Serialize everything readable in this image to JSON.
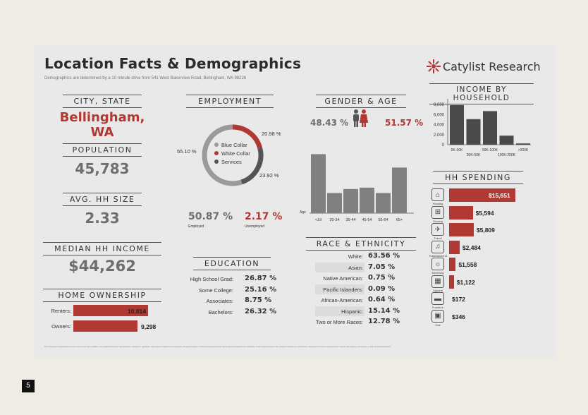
{
  "header": {
    "title": "Location Facts & Demographics",
    "subtitle": "Demographics are determined by a 10 minute drive from 541 West Bakerview Road, Bellingham, WA 98226",
    "brand": "Catylist Research",
    "brand_color": "#b03a33"
  },
  "city": {
    "heading": "CITY, STATE",
    "value": "Bellingham, WA"
  },
  "population": {
    "heading": "POPULATION",
    "value": "45,783"
  },
  "hh_size": {
    "heading": "AVG. HH SIZE",
    "value": "2.33"
  },
  "income": {
    "heading": "MEDIAN HH INCOME",
    "value": "$44,262"
  },
  "home": {
    "heading": "HOME OWNERSHIP",
    "renters_label": "Renters:",
    "renters_value": "10,814",
    "renters_num": 10814,
    "owners_label": "Owners:",
    "owners_value": "9,298",
    "owners_num": 9298
  },
  "employment": {
    "heading": "EMPLOYMENT",
    "blue_collar_label": "Blue Collar",
    "white_collar_label": "White Collar",
    "services_label": "Services",
    "blue_pct": "55.10 %",
    "white_pct": "20.98 %",
    "services_pct": "23.92 %",
    "blue_num": 55.1,
    "white_num": 20.98,
    "services_num": 23.92,
    "employed_value": "50.87 %",
    "employed_label": "Employed",
    "unemployed_value": "2.17 %",
    "unemployed_label": "Unemployed"
  },
  "education": {
    "heading": "EDUCATION",
    "rows": [
      {
        "label": "High School Grad:",
        "value": "26.87 %"
      },
      {
        "label": "Some College:",
        "value": "25.16 %"
      },
      {
        "label": "Associates:",
        "value": "8.75 %"
      },
      {
        "label": "Bachelors:",
        "value": "26.32 %"
      }
    ]
  },
  "gender": {
    "heading": "GENDER & AGE",
    "male": "48.43 %",
    "female": "51.57 %",
    "age_axis_label": "Age"
  },
  "race": {
    "heading": "RACE & ETHNICITY",
    "rows": [
      {
        "label": "White:",
        "value": "63.56 %"
      },
      {
        "label": "Asian:",
        "value": "7.05 %"
      },
      {
        "label": "Native American:",
        "value": "0.75 %"
      },
      {
        "label": "Pacific Islanders:",
        "value": "0.09 %"
      },
      {
        "label": "African-American:",
        "value": "0.64 %"
      },
      {
        "label": "Hispanic:",
        "value": "15.14 %"
      },
      {
        "label": "Two or More Races:",
        "value": "12.78 %"
      }
    ]
  },
  "hh_income": {
    "heading": "INCOME BY HOUSEHOLD"
  },
  "hh_spending": {
    "heading": "HH SPENDING",
    "rows": [
      {
        "icon": "house-icon",
        "label": "Housing",
        "value": "$15,651",
        "amount": 15651
      },
      {
        "icon": "cart-icon",
        "label": "Grocery",
        "value": "$5,594",
        "amount": 5594
      },
      {
        "icon": "plane-icon",
        "label": "Travel",
        "value": "$5,809",
        "amount": 5809
      },
      {
        "icon": "ticket-icon",
        "label": "Entertainment",
        "value": "$2,484",
        "amount": 2484
      },
      {
        "icon": "bulb-icon",
        "label": "Electricity",
        "value": "$1,558",
        "amount": 1558
      },
      {
        "icon": "shirt-icon",
        "label": "Apparel",
        "value": "$1,122",
        "amount": 1122
      },
      {
        "icon": "sofa-icon",
        "label": "Furniture",
        "value": "$172",
        "amount": 172
      },
      {
        "icon": "stove-icon",
        "label": "Gas",
        "value": "$346",
        "amount": 346
      }
    ]
  },
  "footer": {
    "disclaimer": "This information supplied herein is from sources we deem reliable. It is provided without any representation, warranty or guarantee, expressed or implied as to its accuracy. Prospective Buyer or Tenant should conduct an independent investigation and verification of all matters deemed to be material, including, but not limited to, statements of income and expenses. Consult your attorney, accountant, or other professional advisor.",
    "page_number": "5"
  },
  "chart_data": [
    {
      "type": "bar",
      "title": "GENDER & AGE",
      "xlabel": "Age",
      "categories": [
        "<19",
        "20-34",
        "35-44",
        "45-54",
        "55-64",
        "65+"
      ],
      "values": [
        22,
        7.5,
        9,
        9.5,
        7.5,
        17
      ],
      "ylim": [
        0,
        25
      ]
    },
    {
      "type": "bar",
      "title": "INCOME BY HOUSEHOLD",
      "categories": [
        "0K-30K",
        "30K-50K",
        "50K-100K",
        "100K-200K",
        ">200K"
      ],
      "values": [
        7900,
        5100,
        6700,
        1800,
        250
      ],
      "ylim": [
        0,
        10000
      ],
      "yticks": [
        "0",
        "2,000",
        "4,000",
        "6,000",
        "8,000",
        "10,000"
      ]
    },
    {
      "type": "pie",
      "title": "EMPLOYMENT",
      "categories": [
        "Blue Collar",
        "White Collar",
        "Services"
      ],
      "values": [
        55.1,
        20.98,
        23.92
      ]
    }
  ]
}
